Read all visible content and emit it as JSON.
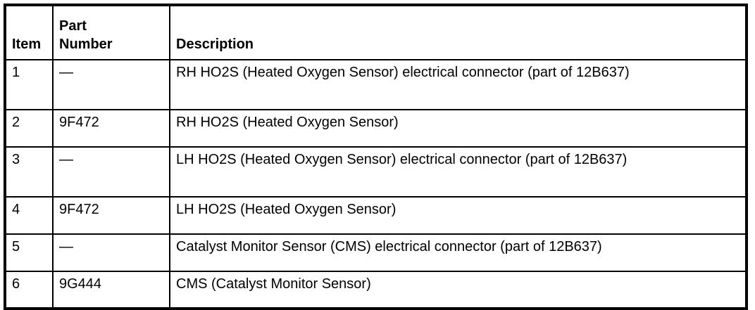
{
  "headers": {
    "item": "Item",
    "part_number": "Part Number",
    "description": "Description"
  },
  "rows": [
    {
      "item": "1",
      "part_number": "—",
      "description": "RH HO2S (Heated Oxygen Sensor) electrical connector (part of 12B637)"
    },
    {
      "item": "2",
      "part_number": "9F472",
      "description": "RH HO2S (Heated Oxygen Sensor)"
    },
    {
      "item": "3",
      "part_number": "—",
      "description": "LH HO2S (Heated Oxygen Sensor) electrical connector (part of 12B637)"
    },
    {
      "item": "4",
      "part_number": "9F472",
      "description": "LH HO2S (Heated Oxygen Sensor)"
    },
    {
      "item": "5",
      "part_number": "—",
      "description": "Catalyst Monitor Sensor (CMS) electrical connector (part of 12B637)"
    },
    {
      "item": "6",
      "part_number": "9G444",
      "description": "CMS (Catalyst Monitor Sensor)"
    }
  ]
}
